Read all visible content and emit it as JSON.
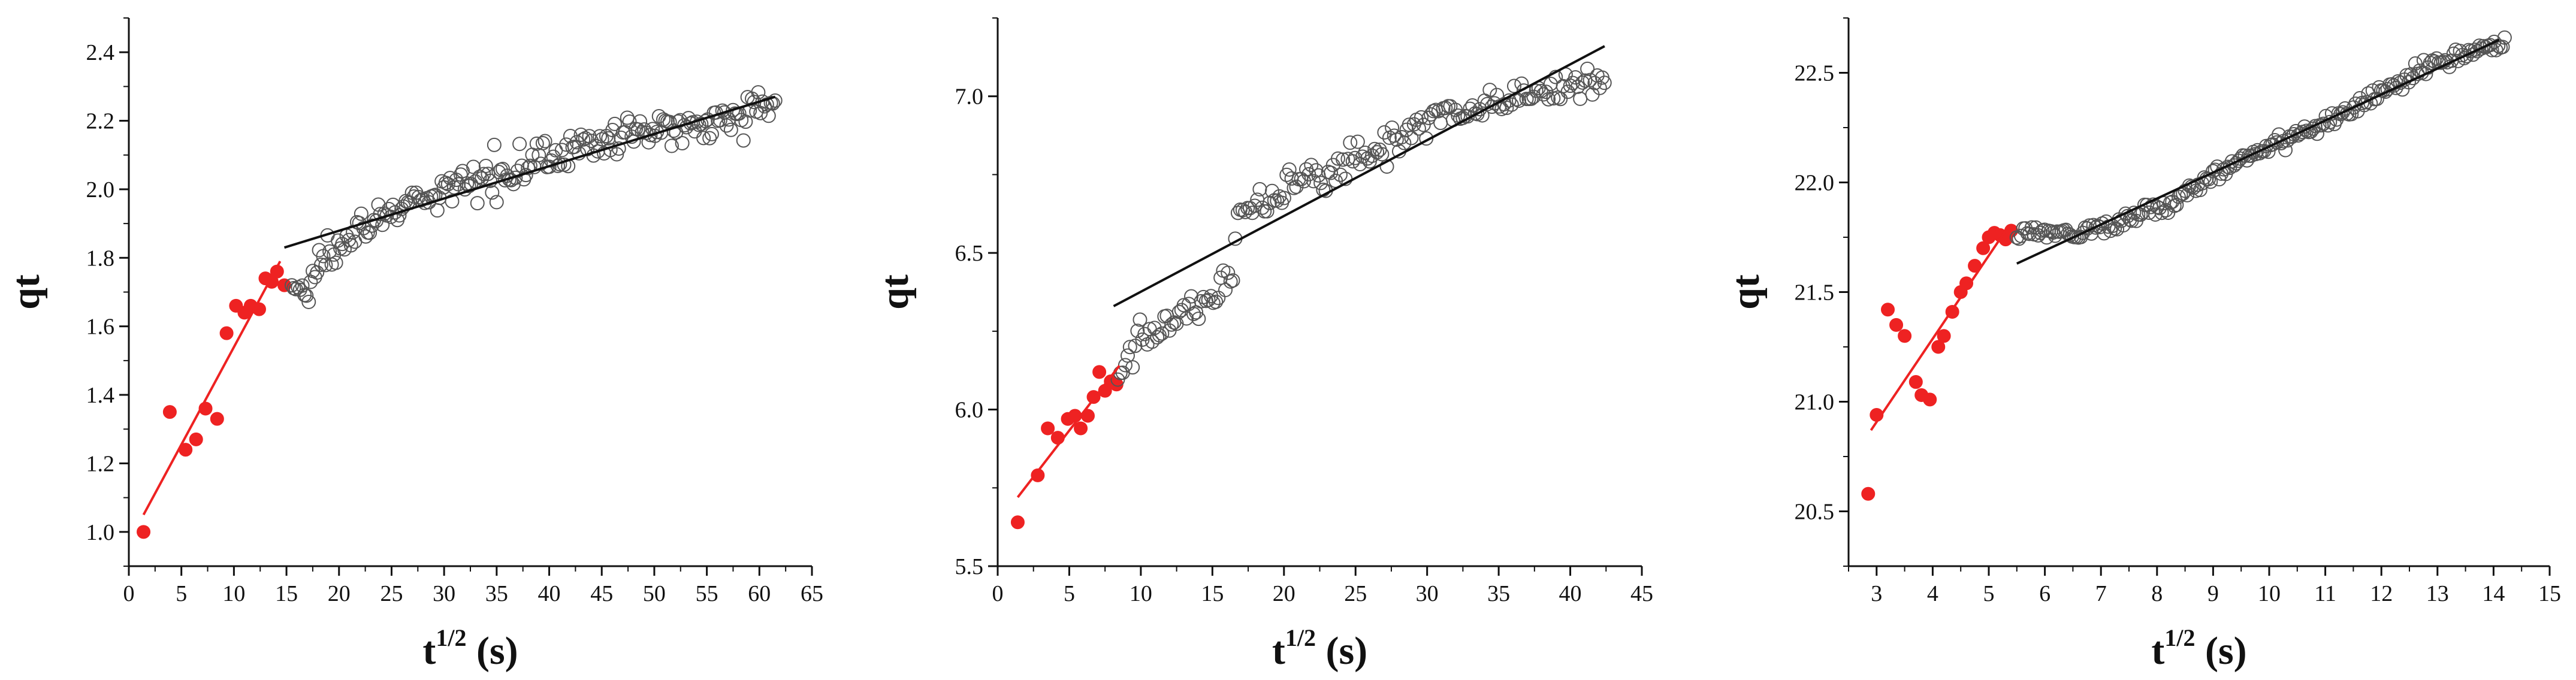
{
  "chart_data": [
    {
      "type": "scatter",
      "title": "",
      "xlabel": {
        "base": "t",
        "sup": "1/2",
        "unit": "(s)"
      },
      "ylabel": "qt",
      "xlim": [
        0,
        65
      ],
      "ylim": [
        0.9,
        2.5
      ],
      "xticks": [
        0,
        5,
        10,
        15,
        20,
        25,
        30,
        35,
        40,
        45,
        50,
        55,
        60,
        65
      ],
      "yticks": [
        1.0,
        1.2,
        1.4,
        1.6,
        1.8,
        2.0,
        2.2,
        2.4
      ],
      "ytick_decimals": 1,
      "grid": false,
      "series": [
        {
          "style": "filled",
          "color": "#ee2222",
          "x": [
            1.4,
            3.9,
            5.4,
            6.4,
            7.3,
            8.4,
            9.3,
            10.2,
            11.0,
            11.6,
            12.4,
            13.0,
            13.6,
            14.1,
            14.8
          ],
          "y": [
            1.0,
            1.35,
            1.24,
            1.27,
            1.36,
            1.33,
            1.58,
            1.66,
            1.64,
            1.66,
            1.65,
            1.74,
            1.73,
            1.76,
            1.72
          ]
        },
        {
          "style": "open",
          "color": "#555555",
          "x_start": 15.5,
          "x_end": 61.5,
          "count": 230,
          "y_curve": [
            [
              15.5,
              1.72
            ],
            [
              17.0,
              1.69
            ],
            [
              18.0,
              1.78
            ],
            [
              20.0,
              1.86
            ],
            [
              25.0,
              1.93
            ],
            [
              30.0,
              1.99
            ],
            [
              35.0,
              2.05
            ],
            [
              40.0,
              2.1
            ],
            [
              45.0,
              2.14
            ],
            [
              50.0,
              2.17
            ],
            [
              55.0,
              2.2
            ],
            [
              61.5,
              2.25
            ]
          ],
          "noise": 0.025
        }
      ],
      "fit_lines": [
        {
          "color": "#ee2222",
          "x": [
            1.4,
            14.4
          ],
          "y": [
            1.05,
            1.79
          ]
        },
        {
          "color": "#111111",
          "x": [
            14.8,
            61.5
          ],
          "y": [
            1.83,
            2.27
          ]
        }
      ]
    },
    {
      "type": "scatter",
      "title": "",
      "xlabel": {
        "base": "t",
        "sup": "1/2",
        "unit": "(s)"
      },
      "ylabel": "qt",
      "xlim": [
        0,
        45
      ],
      "ylim": [
        5.5,
        7.25
      ],
      "xticks": [
        0,
        5,
        10,
        15,
        20,
        25,
        30,
        35,
        40,
        45
      ],
      "yticks": [
        5.5,
        6.0,
        6.5,
        7.0
      ],
      "ytick_decimals": 1,
      "grid": false,
      "series": [
        {
          "style": "filled",
          "color": "#ee2222",
          "x": [
            1.4,
            2.8,
            3.5,
            4.2,
            4.9,
            5.4,
            5.8,
            6.3,
            6.7,
            7.1,
            7.5,
            7.9,
            8.3
          ],
          "y": [
            5.64,
            5.79,
            5.94,
            5.91,
            5.97,
            5.98,
            5.94,
            5.98,
            6.04,
            6.12,
            6.06,
            6.09,
            6.08
          ]
        },
        {
          "style": "open",
          "color": "#555555",
          "x_start": 8.4,
          "x_end": 42.4,
          "count": 200,
          "y_curve": [
            [
              8.4,
              6.1
            ],
            [
              10.0,
              6.22
            ],
            [
              12.0,
              6.28
            ],
            [
              14.0,
              6.33
            ],
            [
              16.3,
              6.4
            ],
            [
              16.6,
              6.62
            ],
            [
              18.0,
              6.66
            ],
            [
              20.0,
              6.7
            ],
            [
              25.0,
              6.8
            ],
            [
              30.0,
              6.92
            ],
            [
              35.0,
              6.98
            ],
            [
              40.0,
              7.03
            ],
            [
              42.4,
              7.05
            ]
          ],
          "noise": 0.028
        }
      ],
      "fit_lines": [
        {
          "color": "#ee2222",
          "x": [
            1.4,
            8.5
          ],
          "y": [
            5.72,
            6.14
          ]
        },
        {
          "color": "#111111",
          "x": [
            8.1,
            42.4
          ],
          "y": [
            6.33,
            7.16
          ]
        }
      ]
    },
    {
      "type": "scatter",
      "title": "",
      "xlabel": {
        "base": "t",
        "sup": "1/2",
        "unit": "(s)"
      },
      "ylabel": "qt",
      "xlim": [
        2.5,
        15
      ],
      "ylim": [
        20.25,
        22.75
      ],
      "xticks": [
        3,
        4,
        5,
        6,
        7,
        8,
        9,
        10,
        11,
        12,
        13,
        14,
        15
      ],
      "yticks": [
        20.5,
        21.0,
        21.5,
        22.0,
        22.5
      ],
      "ytick_decimals": 1,
      "grid": false,
      "series": [
        {
          "style": "filled",
          "color": "#ee2222",
          "x": [
            2.85,
            3.0,
            3.2,
            3.35,
            3.5,
            3.7,
            3.8,
            3.95,
            4.1,
            4.2,
            4.35,
            4.5,
            4.6,
            4.75,
            4.9,
            5.0,
            5.1,
            5.2,
            5.3,
            5.4
          ],
          "y": [
            20.58,
            20.94,
            21.42,
            21.35,
            21.3,
            21.09,
            21.03,
            21.01,
            21.25,
            21.3,
            21.41,
            21.5,
            21.54,
            21.62,
            21.7,
            21.75,
            21.77,
            21.76,
            21.74,
            21.78
          ]
        },
        {
          "style": "open",
          "color": "#555555",
          "x_start": 5.5,
          "x_end": 14.2,
          "count": 230,
          "y_curve": [
            [
              5.5,
              21.76
            ],
            [
              6.0,
              21.78
            ],
            [
              6.5,
              21.77
            ],
            [
              7.0,
              21.8
            ],
            [
              8.0,
              21.87
            ],
            [
              9.0,
              22.03
            ],
            [
              10.0,
              22.17
            ],
            [
              11.0,
              22.27
            ],
            [
              12.0,
              22.41
            ],
            [
              13.0,
              22.55
            ],
            [
              14.2,
              22.64
            ]
          ],
          "noise": 0.018
        }
      ],
      "fit_lines": [
        {
          "color": "#ee2222",
          "x": [
            2.9,
            5.3
          ],
          "y": [
            20.87,
            21.78
          ]
        },
        {
          "color": "#111111",
          "x": [
            5.5,
            14.1
          ],
          "y": [
            21.63,
            22.65
          ]
        }
      ]
    }
  ]
}
